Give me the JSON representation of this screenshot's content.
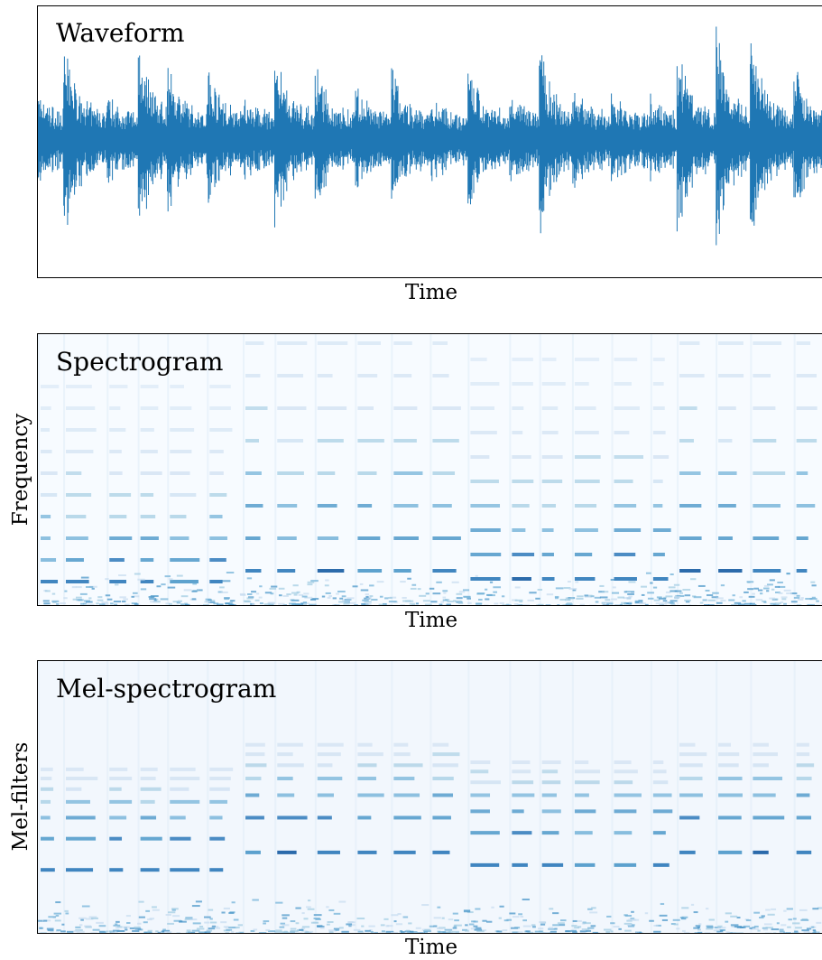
{
  "panels": [
    {
      "title": "Waveform",
      "xlabel": "Time"
    },
    {
      "title": "Spectrogram",
      "xlabel": "Time",
      "ylabel": "Frequency"
    },
    {
      "title": "Mel-spectrogram",
      "xlabel": "Time",
      "ylabel": "Mel-filters"
    }
  ]
}
